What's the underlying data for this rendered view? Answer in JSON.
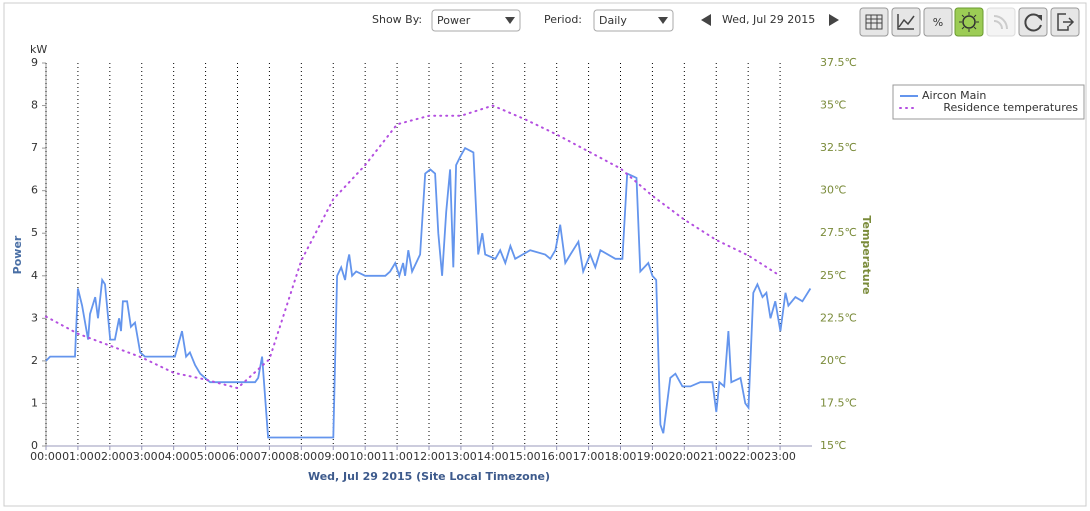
{
  "toolbar": {
    "show_by_label": "Show By:",
    "show_by_value": "Power",
    "period_label": "Period:",
    "period_value": "Daily",
    "date": "Wed, Jul 29 2015"
  },
  "chart_data": {
    "type": "line",
    "y_unit": "kW",
    "ylabel": "Power",
    "y2label": "Temperature",
    "xlabel": "Wed, Jul 29 2015 (Site Local Timezone)",
    "xlim": [
      0,
      24
    ],
    "xticks": [
      {
        "value": 0,
        "label": "00:00"
      },
      {
        "value": 1,
        "label": "01:00"
      },
      {
        "value": 2,
        "label": "02:00"
      },
      {
        "value": 3,
        "label": "03:00"
      },
      {
        "value": 4,
        "label": "04:00"
      },
      {
        "value": 5,
        "label": "05:00"
      },
      {
        "value": 6,
        "label": "06:00"
      },
      {
        "value": 7,
        "label": "07:00"
      },
      {
        "value": 8,
        "label": "08:00"
      },
      {
        "value": 9,
        "label": "09:00"
      },
      {
        "value": 10,
        "label": "10:00"
      },
      {
        "value": 11,
        "label": "11:00"
      },
      {
        "value": 12,
        "label": "12:00"
      },
      {
        "value": 13,
        "label": "13:00"
      },
      {
        "value": 14,
        "label": "14:00"
      },
      {
        "value": 15,
        "label": "15:00"
      },
      {
        "value": 16,
        "label": "16:00"
      },
      {
        "value": 17,
        "label": "17:00"
      },
      {
        "value": 18,
        "label": "18:00"
      },
      {
        "value": 19,
        "label": "19:00"
      },
      {
        "value": 20,
        "label": "20:00"
      },
      {
        "value": 21,
        "label": "21:00"
      },
      {
        "value": 22,
        "label": "22:00"
      },
      {
        "value": 23,
        "label": "23:00"
      }
    ],
    "ylim": [
      0,
      9
    ],
    "yticks": [
      0,
      1,
      2,
      3,
      4,
      5,
      6,
      7,
      8,
      9
    ],
    "y2lim": [
      15,
      37.5
    ],
    "y2ticks": [
      {
        "value": 15,
        "label": "15℃"
      },
      {
        "value": 17.5,
        "label": "17.5℃"
      },
      {
        "value": 20,
        "label": "20℃"
      },
      {
        "value": 22.5,
        "label": "22.5℃"
      },
      {
        "value": 25,
        "label": "25℃"
      },
      {
        "value": 27.5,
        "label": "27.5℃"
      },
      {
        "value": 30,
        "label": "30℃"
      },
      {
        "value": 32.5,
        "label": "32.5℃"
      },
      {
        "value": 35,
        "label": "35℃"
      },
      {
        "value": 37.5,
        "label": "37.5℃"
      }
    ],
    "grid": true,
    "legend": "right",
    "series": [
      {
        "name": "Aircon Main",
        "color": "#6495ed",
        "style": "solid",
        "x": [
          0,
          0.13,
          0.91,
          1.0,
          1.13,
          1.32,
          1.38,
          1.54,
          1.63,
          1.76,
          1.85,
          2.01,
          2.16,
          2.29,
          2.35,
          2.41,
          2.54,
          2.66,
          2.79,
          2.95,
          3.1,
          4.04,
          4.26,
          4.39,
          4.51,
          4.67,
          4.83,
          5.14,
          6.55,
          6.65,
          6.77,
          6.83,
          6.96,
          9.0,
          9.12,
          9.25,
          9.37,
          9.44,
          9.5,
          9.59,
          9.72,
          10.0,
          10.63,
          10.78,
          10.94,
          11.07,
          11.19,
          11.25,
          11.35,
          11.47,
          11.72,
          11.88,
          12.04,
          12.19,
          12.29,
          12.41,
          12.54,
          12.66,
          12.76,
          12.85,
          12.98,
          13.13,
          13.39,
          13.54,
          13.67,
          13.76,
          14.08,
          14.23,
          14.39,
          14.55,
          14.7,
          15.17,
          15.64,
          15.8,
          15.96,
          16.11,
          16.27,
          16.43,
          16.68,
          16.83,
          17.05,
          17.21,
          17.37,
          17.84,
          18.06,
          18.21,
          18.5,
          18.62,
          18.87,
          19.0,
          19.12,
          19.25,
          19.34,
          19.56,
          19.72,
          19.94,
          20.19,
          20.5,
          20.88,
          21.0,
          21.1,
          21.25,
          21.38,
          21.47,
          21.76,
          21.91,
          22.01,
          22.16,
          22.29,
          22.45,
          22.57,
          22.7,
          22.85,
          23.01,
          23.17,
          23.26,
          23.48,
          23.7,
          23.95
        ],
        "values": [
          2.0,
          2.1,
          2.1,
          3.7,
          3.3,
          2.5,
          3.1,
          3.5,
          3.0,
          3.9,
          3.8,
          2.5,
          2.5,
          3.0,
          2.7,
          3.4,
          3.4,
          2.8,
          2.9,
          2.2,
          2.1,
          2.1,
          2.7,
          2.1,
          2.2,
          1.9,
          1.7,
          1.5,
          1.5,
          1.6,
          2.1,
          1.5,
          0.2,
          0.2,
          4.0,
          4.2,
          3.9,
          4.3,
          4.5,
          4.0,
          4.1,
          4.0,
          4.0,
          4.1,
          4.3,
          4.0,
          4.3,
          4.0,
          4.6,
          4.1,
          4.5,
          6.4,
          6.5,
          6.4,
          5.0,
          4.0,
          5.5,
          6.5,
          4.2,
          6.6,
          6.8,
          7.0,
          6.9,
          4.5,
          5.0,
          4.5,
          4.4,
          4.6,
          4.3,
          4.7,
          4.4,
          4.6,
          4.5,
          4.4,
          4.6,
          5.2,
          4.3,
          4.5,
          4.8,
          4.1,
          4.5,
          4.2,
          4.6,
          4.4,
          4.4,
          6.4,
          6.3,
          4.1,
          4.3,
          4.0,
          3.9,
          0.5,
          0.3,
          1.6,
          1.7,
          1.4,
          1.4,
          1.5,
          1.5,
          0.8,
          1.5,
          1.4,
          2.7,
          1.5,
          1.6,
          1.0,
          0.9,
          3.6,
          3.8,
          3.5,
          3.6,
          3.0,
          3.4,
          2.7,
          3.6,
          3.3,
          3.5,
          3.4,
          3.7
        ]
      },
      {
        "name": "Residence temperatures",
        "color": "#b44fe0",
        "style": "dotted",
        "axis": "y2",
        "x": [
          0,
          1,
          2,
          3,
          4,
          5,
          6,
          7,
          8,
          9,
          10,
          11,
          12,
          13,
          14,
          15,
          16,
          17,
          18,
          19,
          20,
          21,
          22,
          23
        ],
        "values": [
          22.6,
          21.6,
          20.9,
          20.2,
          19.3,
          18.9,
          18.4,
          20.1,
          25.9,
          29.5,
          31.5,
          33.9,
          34.4,
          34.4,
          35.0,
          34.2,
          33.3,
          32.3,
          31.3,
          29.7,
          28.3,
          27.1,
          26.2,
          25.0
        ]
      }
    ]
  }
}
